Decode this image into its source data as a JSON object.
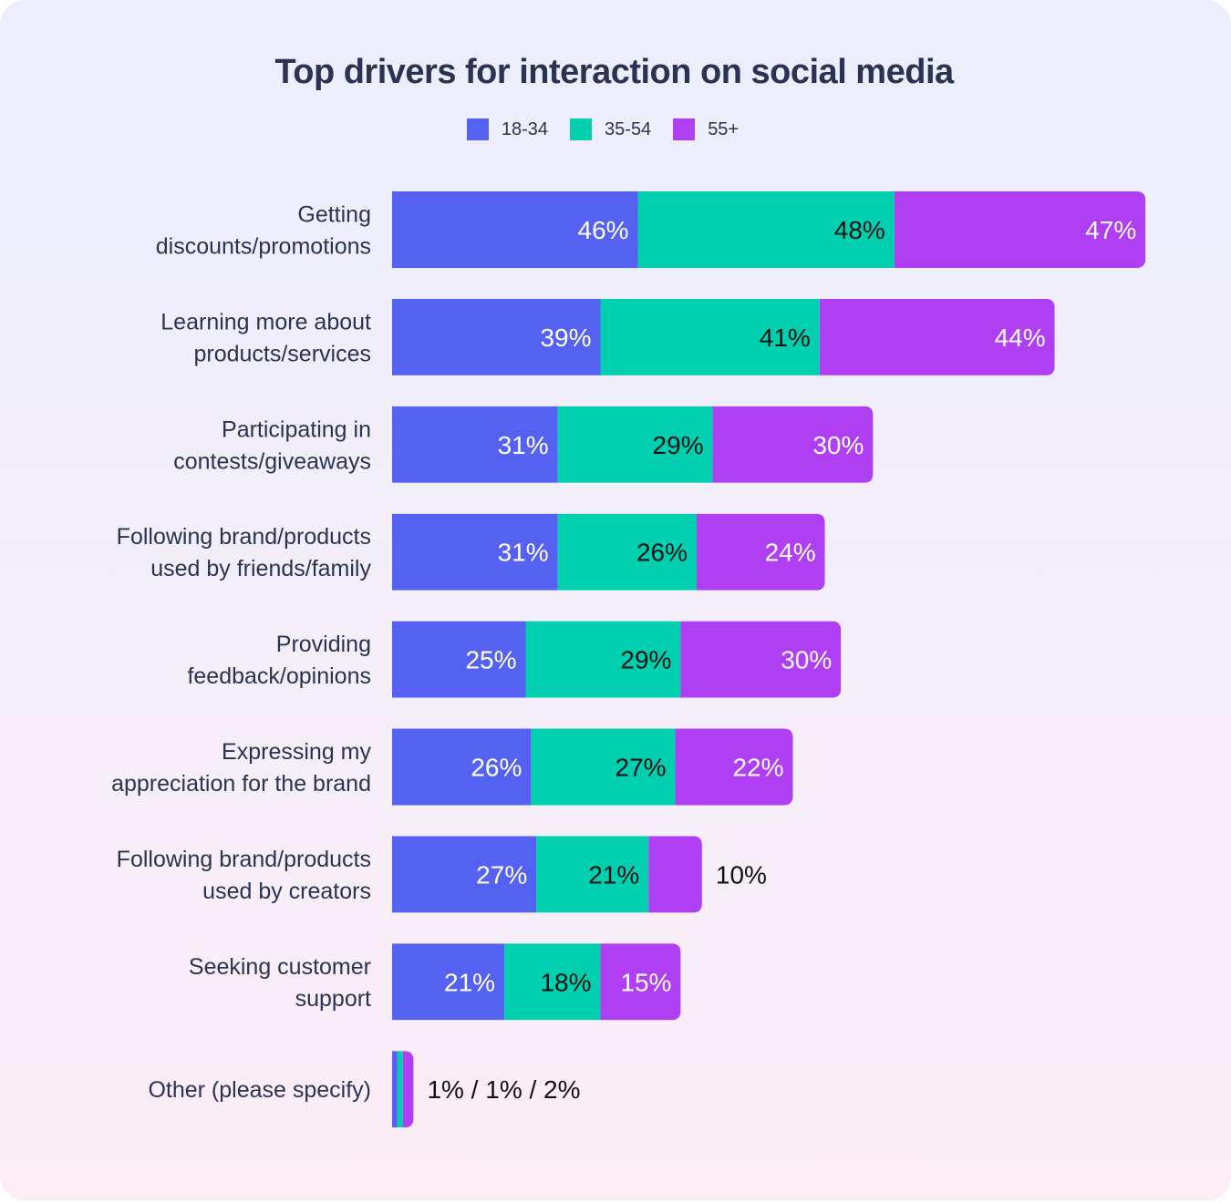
{
  "chart_data": {
    "type": "bar",
    "orientation": "horizontal",
    "stacked": true,
    "title": "Top drivers for interaction on social media",
    "xlabel": "",
    "ylabel": "",
    "grid": false,
    "legend_position": "top-center",
    "categories": [
      [
        "Getting",
        "discounts/promotions"
      ],
      [
        "Learning more about",
        "products/services"
      ],
      [
        "Participating in",
        "contests/giveaways"
      ],
      [
        "Following brand/products",
        "used by friends/family"
      ],
      [
        "Providing",
        "feedback/opinions"
      ],
      [
        "Expressing my",
        "appreciation for the brand"
      ],
      [
        "Following brand/products",
        "used by creators"
      ],
      [
        "Seeking customer",
        "support"
      ],
      [
        "Other (please specify)"
      ]
    ],
    "series": [
      {
        "name": "18-34",
        "color": "#5561f0",
        "label_color": "#ffffff",
        "values": [
          46,
          39,
          31,
          31,
          25,
          26,
          27,
          21,
          1
        ]
      },
      {
        "name": "35-54",
        "color": "#00cfb0",
        "label_color": "#111111",
        "values": [
          48,
          41,
          29,
          26,
          29,
          27,
          21,
          18,
          1
        ]
      },
      {
        "name": "55+",
        "color": "#b03ff3",
        "label_color": "#ffffff",
        "values": [
          47,
          44,
          30,
          24,
          30,
          22,
          10,
          15,
          2
        ]
      }
    ],
    "outside_labels": {
      "6": "10%",
      "8": "1% / 1% / 2%"
    },
    "value_suffix": "%"
  }
}
